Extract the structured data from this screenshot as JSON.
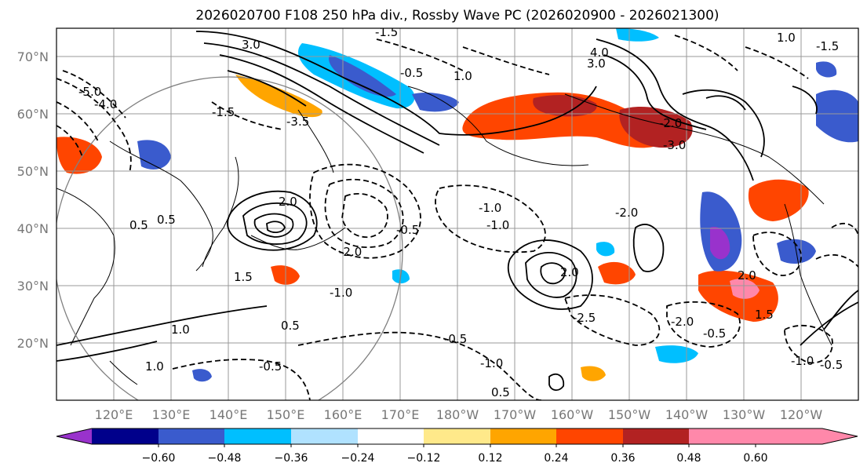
{
  "title": "2026020700 F108 250 hPa div., Rossby Wave PC (2026020900 - 2026021300)",
  "lat_labels": [
    "70°N",
    "60°N",
    "50°N",
    "40°N",
    "30°N",
    "20°N"
  ],
  "lon_labels": [
    "120°E",
    "130°E",
    "140°E",
    "150°E",
    "160°E",
    "170°E",
    "180°W",
    "170°W",
    "160°W",
    "150°W",
    "140°W",
    "130°W",
    "120°W"
  ],
  "colorbar": {
    "colors": [
      "#9932cc",
      "#00008b",
      "#3a5bcd",
      "#00bfff",
      "#b0e2ff",
      "#ffffff",
      "#ffe98a",
      "#ffa500",
      "#ff4500",
      "#b22222",
      "#ff88aa"
    ],
    "tick_labels": [
      "−0.60",
      "−0.48",
      "−0.36",
      "−0.24",
      "−0.12",
      "0.12",
      "0.24",
      "0.36",
      "0.48",
      "0.60"
    ]
  },
  "contour_labels": [
    "-1.5",
    "1.0",
    "3.0",
    "4.0",
    "-1.5",
    "3.0",
    "-4.0",
    "-5.0",
    "-3.5",
    "-1.5",
    "2.0",
    "-1.0",
    "-2.0",
    "-3.0",
    "-0.5",
    "1.0",
    "2.0",
    "1.5",
    "0.5",
    "-1.0",
    "0.5",
    "-0.5",
    "-1.0",
    "1.0",
    "0.5",
    "-0.5",
    "-1.0",
    "0.5",
    "-2.0",
    "2.0",
    "-2.5",
    "1.0",
    "-0.5",
    "-2.0",
    "1.5",
    "-0.5",
    "-1.0",
    "-0.5",
    "-2.0"
  ],
  "colors": {
    "accent_neg": "#00bfff",
    "accent_pos": "#ff4500",
    "grid": "#999999",
    "axis_text": "#777777"
  }
}
